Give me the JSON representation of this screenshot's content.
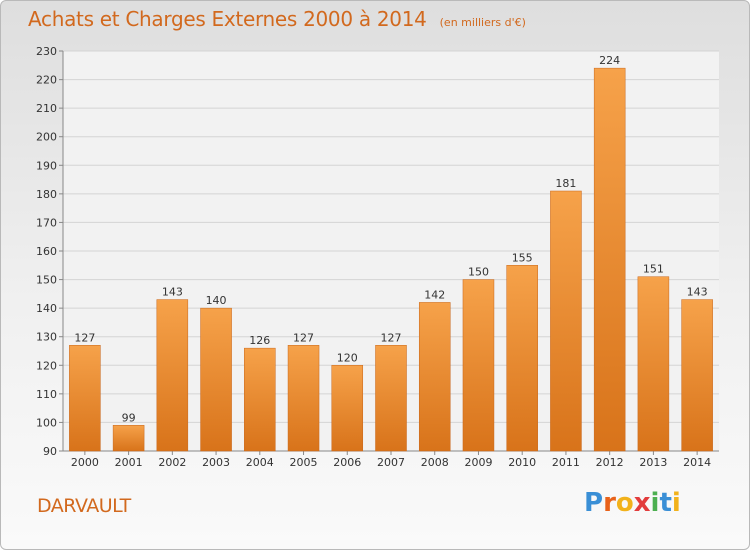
{
  "header": {
    "title": "Achats et Charges Externes 2000 à 2014",
    "subtitle": "(en milliers d'€)"
  },
  "footer": {
    "commune": "DARVAULT",
    "logo_letters": [
      "P",
      "r",
      "o",
      "x",
      "i",
      "t",
      "i"
    ],
    "logo_colors": [
      "#3a8fd6",
      "#e8621a",
      "#f2b21b",
      "#e23c3c",
      "#4caf50",
      "#3a8fd6",
      "#f2b21b"
    ]
  },
  "chart_data": {
    "type": "bar",
    "title": "Achats et Charges Externes 2000 à 2014",
    "subtitle": "(en milliers d'€)",
    "xlabel": "",
    "ylabel": "",
    "categories": [
      "2000",
      "2001",
      "2002",
      "2003",
      "2004",
      "2005",
      "2006",
      "2007",
      "2008",
      "2009",
      "2010",
      "2011",
      "2012",
      "2013",
      "2014"
    ],
    "values": [
      127,
      99,
      143,
      140,
      126,
      127,
      120,
      127,
      142,
      150,
      155,
      181,
      224,
      151,
      143
    ],
    "ylim": [
      90,
      230
    ],
    "yticks": [
      90,
      100,
      110,
      120,
      130,
      140,
      150,
      160,
      170,
      180,
      190,
      200,
      210,
      220,
      230
    ],
    "grid": true,
    "bar_color": "#f0922e",
    "bar_color_dark": "#d8731a",
    "label_color": "#333333"
  }
}
